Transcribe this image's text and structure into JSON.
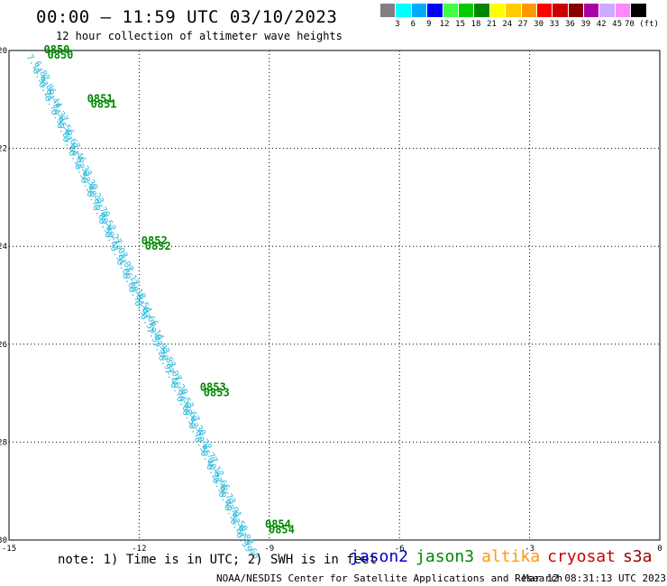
{
  "header": {
    "title": "00:00 – 11:59 UTC 03/10/2023",
    "subtitle": "12 hour collection of altimeter wave heights"
  },
  "colorbar": {
    "colors": [
      "#808080",
      "#00ffff",
      "#00aaff",
      "#0000ff",
      "#40ff40",
      "#00cc00",
      "#008800",
      "#ffff00",
      "#ffcc00",
      "#ff9900",
      "#ff0000",
      "#cc0000",
      "#880000",
      "#aa00aa",
      "#ccaaff",
      "#ff88ff",
      "#000000"
    ],
    "labels": [
      "3",
      "6",
      "9",
      "12",
      "15",
      "18",
      "21",
      "24",
      "27",
      "30",
      "33",
      "36",
      "39",
      "42",
      "45",
      "70 (ft)"
    ]
  },
  "chart_data": {
    "type": "scatter",
    "xlim": [
      -15,
      0
    ],
    "ylim": [
      -30,
      -20
    ],
    "x_ticks": [
      "-15",
      "-12",
      "-9",
      "-6",
      "-3",
      "0"
    ],
    "y_ticks": [
      "-20",
      "-22",
      "-24",
      "-26",
      "-28",
      "-30"
    ],
    "swh_track_color": "#33bbdd",
    "time_label_color": "#008800",
    "swh_values": [
      "7.11",
      "6.82",
      "6.91",
      "6.86",
      "6.21",
      "6.44",
      "6.74",
      "7.37",
      "6.95",
      "6.56",
      "6.81",
      "6.67",
      "6.64",
      "6.46",
      "6.12",
      "6.33",
      "6.53",
      "6.39",
      "6.58",
      "6.23",
      "6.75",
      "6.79",
      "6.89",
      "6.52",
      "6.59",
      "6.27",
      "6.47",
      "7.03",
      "6.91",
      "7.02",
      "6.86",
      "7.12",
      "6.89",
      "7.18",
      "6.74",
      "6.54",
      "6.97",
      "6.66",
      "6.59",
      "7.14",
      "7.53",
      "6.93",
      "7.20",
      "6.83",
      "6.92",
      "7.07",
      "7.46",
      "7.29",
      "6.74",
      "6.53",
      "6.60",
      "6.67",
      "6.53",
      "6.30",
      "6.79",
      "6.72",
      "6.55",
      "6.77",
      "6.40",
      "6.12",
      "6.22",
      "6.66",
      "6.96",
      "6.73",
      "6.43",
      "6.91",
      "6.52",
      "6.50",
      "6.87",
      "6.88",
      "6.39",
      "6.66"
    ],
    "time_labels": [
      {
        "time": "0850",
        "lon": -14.2,
        "lat": -20.0
      },
      {
        "time": "0851",
        "lon": -13.2,
        "lat": -21.0
      },
      {
        "time": "0852",
        "lon": -11.95,
        "lat": -23.9
      },
      {
        "time": "0853",
        "lon": -10.6,
        "lat": -26.9
      },
      {
        "time": "0854",
        "lon": -9.1,
        "lat": -29.7
      }
    ]
  },
  "footer": {
    "note": "note: 1) Time is in UTC; 2) SWH is in feet",
    "legend": [
      {
        "label": "jason2",
        "color": "#0000cc"
      },
      {
        "label": "jason3",
        "color": "#008800"
      },
      {
        "label": "altika",
        "color": "#ff9900"
      },
      {
        "label": "cryosat",
        "color": "#cc0000"
      },
      {
        "label": "s3a",
        "color": "#990000"
      }
    ],
    "credit": "NOAA/NESDIS Center for Satellite Applications and Research",
    "timestamp": "Mar 12 08:31:13 UTC 2023"
  }
}
